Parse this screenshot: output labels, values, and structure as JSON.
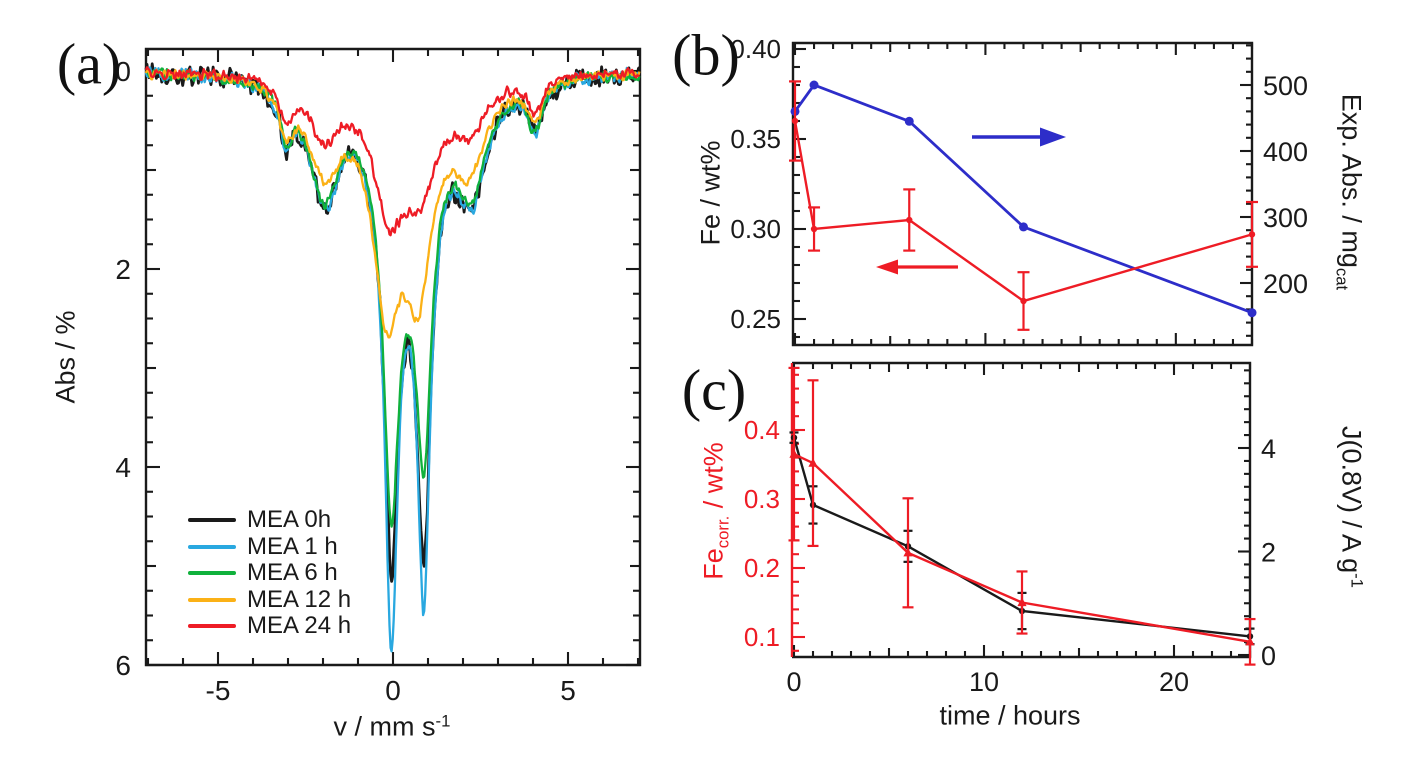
{
  "colors": {
    "red": "#ee1c25",
    "blue": "#2d2dc9",
    "cyan": "#29a8e0",
    "green": "#10b13c",
    "orange": "#fbb116",
    "black": "#1a1a1a",
    "frame": "#1a1a1a"
  },
  "panels": {
    "a": {
      "letter": "(a)",
      "y_label": "Abs / %",
      "x_label_parts": [
        {
          "t": "v / mm s"
        },
        {
          "t": "-1",
          "sup": true
        }
      ],
      "y_tick_labels": [
        "0",
        "2",
        "4",
        "6"
      ],
      "x_tick_labels": [
        "-5",
        "0",
        "5"
      ],
      "legend": [
        {
          "label": "MEA 0h",
          "color_key": "black"
        },
        {
          "label": "MEA 1 h",
          "color_key": "cyan"
        },
        {
          "label": "MEA 6 h",
          "color_key": "green"
        },
        {
          "label": "MEA 12 h",
          "color_key": "orange"
        },
        {
          "label": "MEA 24 h",
          "color_key": "red"
        }
      ]
    },
    "b": {
      "letter": "(b)",
      "left_label": "Fe / wt%",
      "right_label_parts": [
        {
          "t": "Exp. Abs. / mg"
        },
        {
          "t": "cat",
          "sub": true
        }
      ],
      "left_tick_labels": [
        "0.40",
        "0.35",
        "0.30",
        "0.25"
      ],
      "right_tick_labels": [
        "500",
        "400",
        "300",
        "200"
      ]
    },
    "c": {
      "letter": "(c)",
      "left_label_parts": [
        {
          "t": "Fe"
        },
        {
          "t": "corr.",
          "sub": true
        },
        {
          "t": " / wt%"
        }
      ],
      "right_label_parts": [
        {
          "t": "J(0.8V) / A g"
        },
        {
          "t": "-1",
          "sup": true
        }
      ],
      "x_label": "time / hours",
      "left_tick_labels": [
        "0.4",
        "0.3",
        "0.2",
        "0.1"
      ],
      "right_tick_labels": [
        "4",
        "2",
        "0"
      ],
      "x_tick_labels": [
        "0",
        "10",
        "20"
      ]
    }
  },
  "chart_data": [
    {
      "id": "a",
      "type": "line",
      "title": "Moessbauer absorption spectra of MEA at increasing operation time",
      "xlabel": "v / mm s^-1",
      "ylabel": "Abs / %",
      "xlim": [
        -7,
        7
      ],
      "ylim": [
        0,
        6
      ],
      "y_axis_inverted_downward": true,
      "x_ticks": [
        -5,
        0,
        5
      ],
      "y_ticks": [
        0,
        2,
        4,
        6
      ],
      "main_dip_velocities_mm_s": [
        -0.05,
        0.88
      ],
      "components_format": "[center mm/s, depth Abs%, width mm/s, shape l=lorentzian g=gaussian]",
      "series": [
        {
          "name": "MEA 0h",
          "color_key": "black",
          "noise_amp": 0.13,
          "dip_depths_abs_pct": [
            5.1,
            5.0
          ],
          "components": [
            [
              -3.05,
              0.5,
              0.22,
              "l"
            ],
            [
              -1.95,
              1.25,
              0.55,
              "l"
            ],
            [
              -0.05,
              3.8,
              0.24,
              "l"
            ],
            [
              0.88,
              3.7,
              0.24,
              "l"
            ],
            [
              2.25,
              1.15,
              0.55,
              "l"
            ],
            [
              4.05,
              0.5,
              0.27,
              "l"
            ],
            [
              0.35,
              1.05,
              1.15,
              "g"
            ]
          ]
        },
        {
          "name": "MEA 1 h",
          "color_key": "cyan",
          "noise_amp": 0.08,
          "dip_depths_abs_pct": [
            5.9,
            5.45
          ],
          "components": [
            [
              -3.05,
              0.5,
              0.22,
              "l"
            ],
            [
              -1.95,
              1.25,
              0.55,
              "l"
            ],
            [
              -0.05,
              4.6,
              0.22,
              "l"
            ],
            [
              0.88,
              4.15,
              0.22,
              "l"
            ],
            [
              2.25,
              1.15,
              0.55,
              "l"
            ],
            [
              4.05,
              0.5,
              0.27,
              "l"
            ],
            [
              0.35,
              1.05,
              1.15,
              "g"
            ]
          ]
        },
        {
          "name": "MEA 6 h",
          "color_key": "green",
          "noise_amp": 0.07,
          "dip_depths_abs_pct": [
            4.65,
            4.1
          ],
          "components": [
            [
              -3.05,
              0.48,
              0.22,
              "l"
            ],
            [
              -1.95,
              1.2,
              0.55,
              "l"
            ],
            [
              -0.05,
              3.35,
              0.26,
              "l"
            ],
            [
              0.88,
              2.85,
              0.26,
              "l"
            ],
            [
              2.25,
              1.1,
              0.55,
              "l"
            ],
            [
              4.05,
              0.48,
              0.27,
              "l"
            ],
            [
              0.35,
              1.0,
              1.15,
              "g"
            ]
          ]
        },
        {
          "name": "MEA 12 h",
          "color_key": "orange",
          "noise_amp": 0.06,
          "dip_depths_abs_pct": [
            2.75,
            2.35
          ],
          "components": [
            [
              -3.05,
              0.45,
              0.24,
              "l"
            ],
            [
              -1.95,
              0.95,
              0.6,
              "l"
            ],
            [
              -0.2,
              1.55,
              0.42,
              "l"
            ],
            [
              0.72,
              1.3,
              0.42,
              "l"
            ],
            [
              2.2,
              0.85,
              0.6,
              "l"
            ],
            [
              4.05,
              0.4,
              0.28,
              "l"
            ],
            [
              0.3,
              0.85,
              1.2,
              "g"
            ]
          ]
        },
        {
          "name": "MEA 24 h",
          "color_key": "red",
          "noise_amp": 0.07,
          "dip_depths_abs_pct": [
            1.65,
            1.35
          ],
          "components": [
            [
              -3.05,
              0.36,
              0.24,
              "l"
            ],
            [
              -1.95,
              0.6,
              0.6,
              "l"
            ],
            [
              -0.12,
              0.95,
              0.5,
              "l"
            ],
            [
              0.8,
              0.7,
              0.5,
              "l"
            ],
            [
              2.2,
              0.5,
              0.6,
              "l"
            ],
            [
              4.05,
              0.33,
              0.28,
              "l"
            ],
            [
              0.3,
              0.45,
              1.2,
              "g"
            ]
          ]
        }
      ]
    },
    {
      "id": "b",
      "type": "line",
      "title": "Fe content and expected absorption vs operation time",
      "x": [
        0,
        1,
        6,
        12,
        24
      ],
      "xlim": [
        0,
        24
      ],
      "x_ticks": [
        0,
        10,
        20
      ],
      "left_axis": {
        "label": "Fe / wt%",
        "ticks": [
          0.25,
          0.3,
          0.35,
          0.4
        ],
        "range": [
          0.236,
          0.403
        ]
      },
      "right_axis": {
        "label": "Exp. Abs. / mg_cat",
        "ticks": [
          200,
          300,
          400,
          500
        ],
        "range": [
          106,
          564
        ]
      },
      "series": [
        {
          "name": "Fe / wt%",
          "axis": "left",
          "color_key": "red",
          "marker": "circle",
          "values": [
            0.36,
            0.3,
            0.305,
            0.26,
            0.297
          ],
          "errors": [
            0.022,
            0.012,
            0.017,
            0.016,
            0.018
          ]
        },
        {
          "name": "Exp. Abs. / mg_cat",
          "axis": "right",
          "color_key": "blue",
          "marker": "circle",
          "values": [
            460,
            500,
            445,
            285,
            155
          ],
          "errors": null
        }
      ],
      "annotations": [
        {
          "type": "arrow",
          "dir": "right",
          "color_key": "blue",
          "points_to": "right-axis"
        },
        {
          "type": "arrow",
          "dir": "left",
          "color_key": "red",
          "points_to": "left-axis"
        }
      ]
    },
    {
      "id": "c",
      "type": "line",
      "title": "Corrected Fe content and ORR activity vs operation time",
      "xlabel": "time / hours",
      "x": [
        0,
        1,
        6,
        12,
        24
      ],
      "xlim": [
        0,
        24
      ],
      "x_ticks": [
        0,
        10,
        20
      ],
      "left_axis": {
        "label": "Fe_corr. / wt%",
        "ticks": [
          0.1,
          0.2,
          0.3,
          0.4
        ],
        "range": [
          0.071,
          0.497
        ],
        "color_key": "red"
      },
      "right_axis": {
        "label": "J(0.8V) / A g^-1",
        "ticks": [
          0,
          2,
          4
        ],
        "range": [
          -0.04,
          5.64
        ]
      },
      "series": [
        {
          "name": "Fe_corr. / wt%",
          "axis": "left",
          "color_key": "red",
          "marker": "triangle",
          "values": [
            0.365,
            0.352,
            0.222,
            0.15,
            0.093
          ],
          "errors": [
            0.125,
            0.12,
            0.079,
            0.045,
            0.033
          ]
        },
        {
          "name": "J(0.8V) / A g^-1",
          "axis": "right",
          "color_key": "black",
          "marker": "circle",
          "values": [
            4.2,
            2.9,
            2.1,
            0.85,
            0.36
          ],
          "errors": [
            0.1,
            0.36,
            0.3,
            0.35,
            0.15
          ]
        }
      ]
    }
  ]
}
